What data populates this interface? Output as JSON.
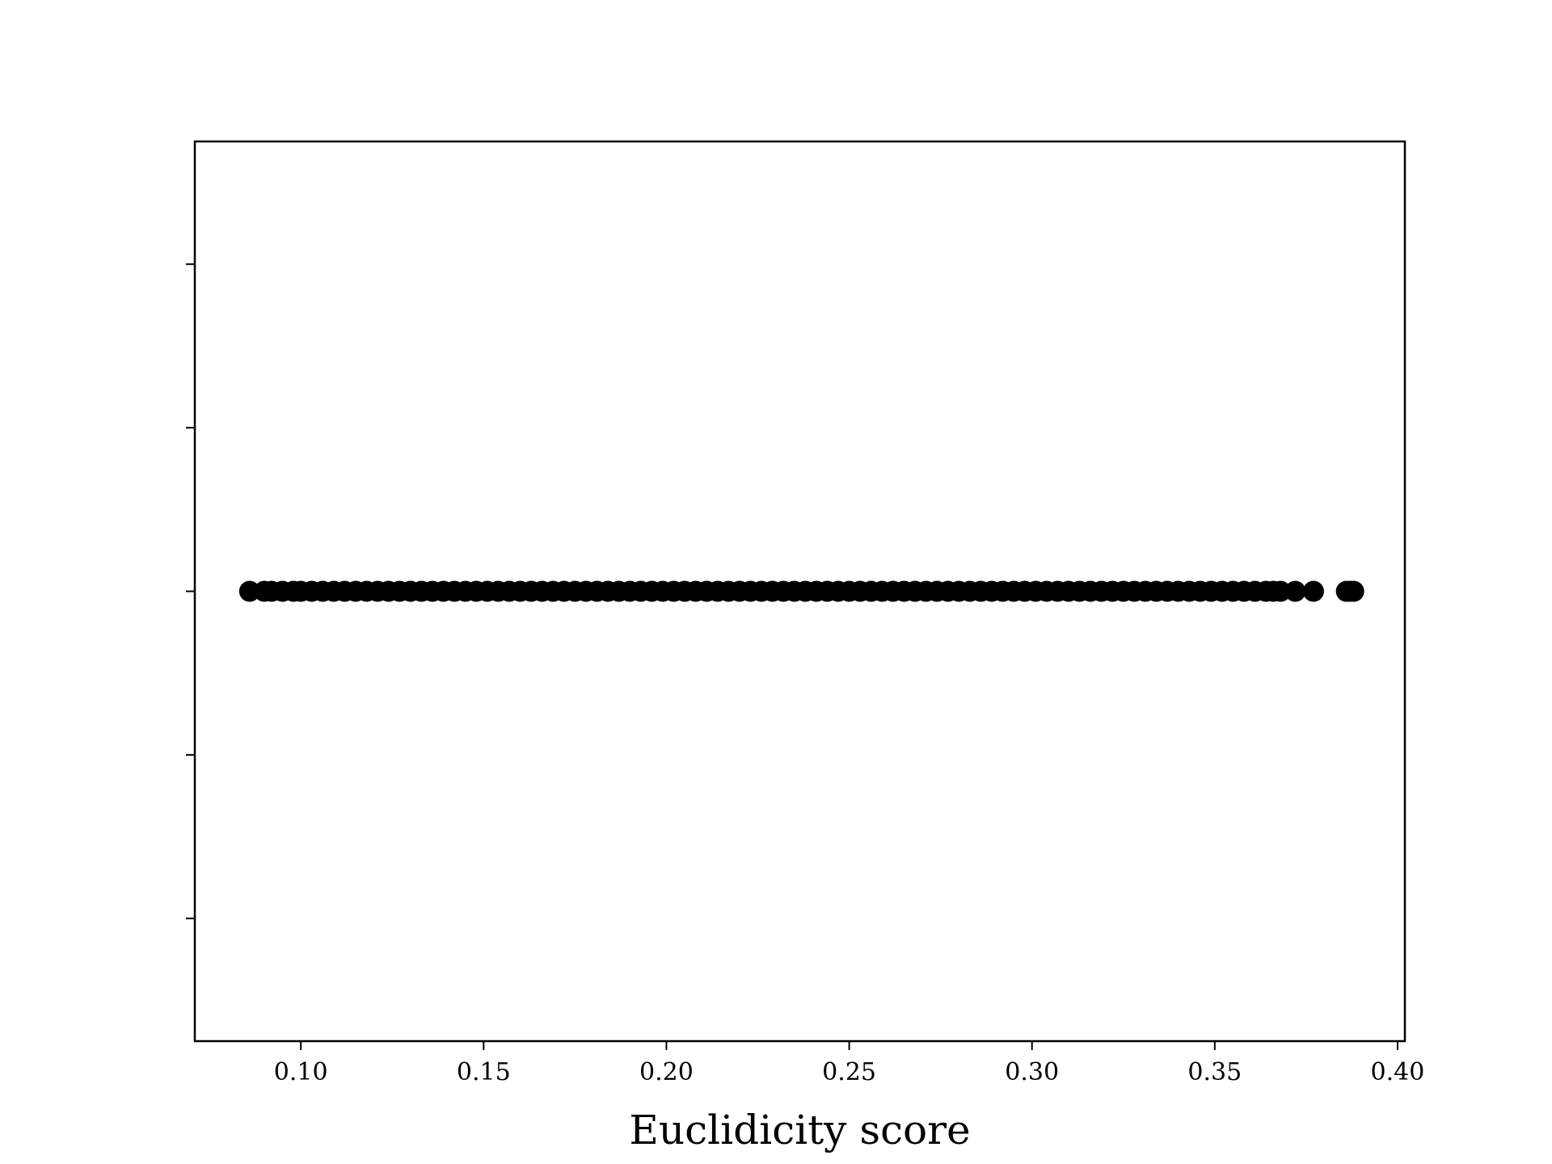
{
  "chart_data": {
    "type": "scatter",
    "title": "",
    "xlabel": "Euclidicity score",
    "ylabel": "",
    "xlim": [
      0.071,
      0.402
    ],
    "ylim": [
      -0.055,
      0.055
    ],
    "x_ticks": [
      0.1,
      0.15,
      0.2,
      0.25,
      0.3,
      0.35,
      0.4
    ],
    "x_tick_labels": [
      "0.10",
      "0.15",
      "0.20",
      "0.25",
      "0.30",
      "0.35",
      "0.40"
    ],
    "y_ticks": [
      -0.04,
      -0.02,
      0.0,
      0.02,
      0.04
    ],
    "y_tick_labels_visible": false,
    "grid": false,
    "legend": "none",
    "marker_color": "#000000",
    "series": [
      {
        "x": [
          0.086,
          0.09,
          0.092,
          0.095,
          0.098,
          0.1,
          0.103,
          0.106,
          0.109,
          0.112,
          0.115,
          0.118,
          0.121,
          0.124,
          0.127,
          0.13,
          0.133,
          0.136,
          0.139,
          0.142,
          0.145,
          0.148,
          0.151,
          0.154,
          0.157,
          0.16,
          0.163,
          0.166,
          0.169,
          0.172,
          0.175,
          0.178,
          0.181,
          0.184,
          0.187,
          0.19,
          0.193,
          0.196,
          0.199,
          0.202,
          0.205,
          0.208,
          0.211,
          0.214,
          0.217,
          0.22,
          0.223,
          0.226,
          0.229,
          0.232,
          0.235,
          0.238,
          0.241,
          0.244,
          0.247,
          0.25,
          0.253,
          0.256,
          0.259,
          0.262,
          0.265,
          0.268,
          0.271,
          0.274,
          0.277,
          0.28,
          0.283,
          0.286,
          0.289,
          0.292,
          0.295,
          0.298,
          0.301,
          0.304,
          0.307,
          0.31,
          0.313,
          0.316,
          0.319,
          0.322,
          0.325,
          0.328,
          0.331,
          0.334,
          0.337,
          0.34,
          0.343,
          0.346,
          0.349,
          0.352,
          0.355,
          0.358,
          0.361,
          0.364,
          0.366,
          0.368,
          0.372,
          0.377,
          0.386,
          0.387,
          0.388
        ],
        "y_constant": 0.0
      }
    ]
  }
}
